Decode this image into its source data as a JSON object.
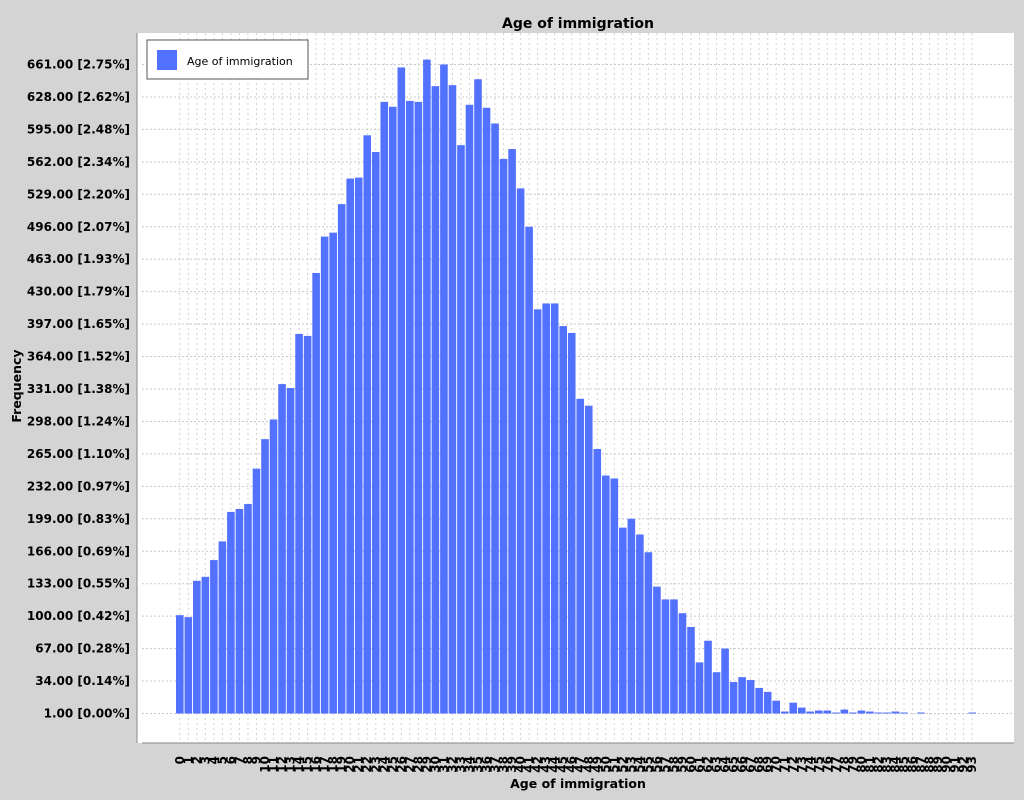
{
  "chart_data": {
    "type": "bar",
    "title": "Age of immigration",
    "xlabel": "Age of immigration",
    "ylabel": "Frequency",
    "legend": {
      "label": "Age of immigration",
      "placement": "top-left",
      "color": "#5271ff"
    },
    "grid": true,
    "ylim": [
      1,
      661
    ],
    "y_ticks": [
      {
        "value": 1,
        "label": "1.00 [0.00%]"
      },
      {
        "value": 34,
        "label": "34.00 [0.14%]"
      },
      {
        "value": 67,
        "label": "67.00 [0.28%]"
      },
      {
        "value": 100,
        "label": "100.00 [0.42%]"
      },
      {
        "value": 133,
        "label": "133.00 [0.55%]"
      },
      {
        "value": 166,
        "label": "166.00 [0.69%]"
      },
      {
        "value": 199,
        "label": "199.00 [0.83%]"
      },
      {
        "value": 232,
        "label": "232.00 [0.97%]"
      },
      {
        "value": 265,
        "label": "265.00 [1.10%]"
      },
      {
        "value": 298,
        "label": "298.00 [1.24%]"
      },
      {
        "value": 331,
        "label": "331.00 [1.38%]"
      },
      {
        "value": 364,
        "label": "364.00 [1.52%]"
      },
      {
        "value": 397,
        "label": "397.00 [1.65%]"
      },
      {
        "value": 430,
        "label": "430.00 [1.79%]"
      },
      {
        "value": 463,
        "label": "463.00 [1.93%]"
      },
      {
        "value": 496,
        "label": "496.00 [2.07%]"
      },
      {
        "value": 529,
        "label": "529.00 [2.20%]"
      },
      {
        "value": 562,
        "label": "562.00 [2.34%]"
      },
      {
        "value": 595,
        "label": "595.00 [2.48%]"
      },
      {
        "value": 628,
        "label": "628.00 [2.62%]"
      },
      {
        "value": 661,
        "label": "661.00 [2.75%]"
      }
    ],
    "categories": [
      "0",
      "1",
      "2",
      "3",
      "4",
      "5",
      "6",
      "7",
      "8",
      "9",
      "10",
      "11",
      "12",
      "13",
      "14",
      "15",
      "16",
      "17",
      "18",
      "19",
      "20",
      "21",
      "22",
      "23",
      "24",
      "25",
      "26",
      "27",
      "28",
      "29",
      "30",
      "31",
      "32",
      "33",
      "34",
      "35",
      "36",
      "37",
      "38",
      "39",
      "40",
      "41",
      "42",
      "43",
      "44",
      "45",
      "46",
      "47",
      "48",
      "49",
      "50",
      "51",
      "52",
      "53",
      "54",
      "55",
      "56",
      "57",
      "58",
      "59",
      "60",
      "61",
      "62",
      "63",
      "64",
      "65",
      "66",
      "67",
      "68",
      "69",
      "70",
      "71",
      "72",
      "73",
      "74",
      "75",
      "76",
      "77",
      "78",
      "79",
      "80",
      "81",
      "82",
      "83",
      "84",
      "85",
      "86",
      "87",
      "88",
      "89",
      "90",
      "91",
      "92",
      "93"
    ],
    "values": [
      101,
      99,
      136,
      140,
      157,
      176,
      206,
      209,
      214,
      250,
      280,
      300,
      336,
      332,
      387,
      385,
      449,
      486,
      490,
      519,
      545,
      546,
      589,
      572,
      623,
      618,
      658,
      624,
      623,
      666,
      639,
      661,
      640,
      579,
      620,
      646,
      617,
      601,
      565,
      575,
      535,
      496,
      412,
      418,
      418,
      395,
      388,
      321,
      314,
      270,
      243,
      240,
      190,
      199,
      183,
      165,
      130,
      117,
      117,
      103,
      89,
      53,
      75,
      43,
      67,
      33,
      38,
      35,
      27,
      23,
      14,
      3,
      12,
      7,
      3,
      4,
      4,
      2,
      5,
      1,
      4,
      3,
      2,
      1,
      3,
      1,
      0,
      1,
      0,
      0,
      0,
      0,
      0,
      1
    ]
  }
}
